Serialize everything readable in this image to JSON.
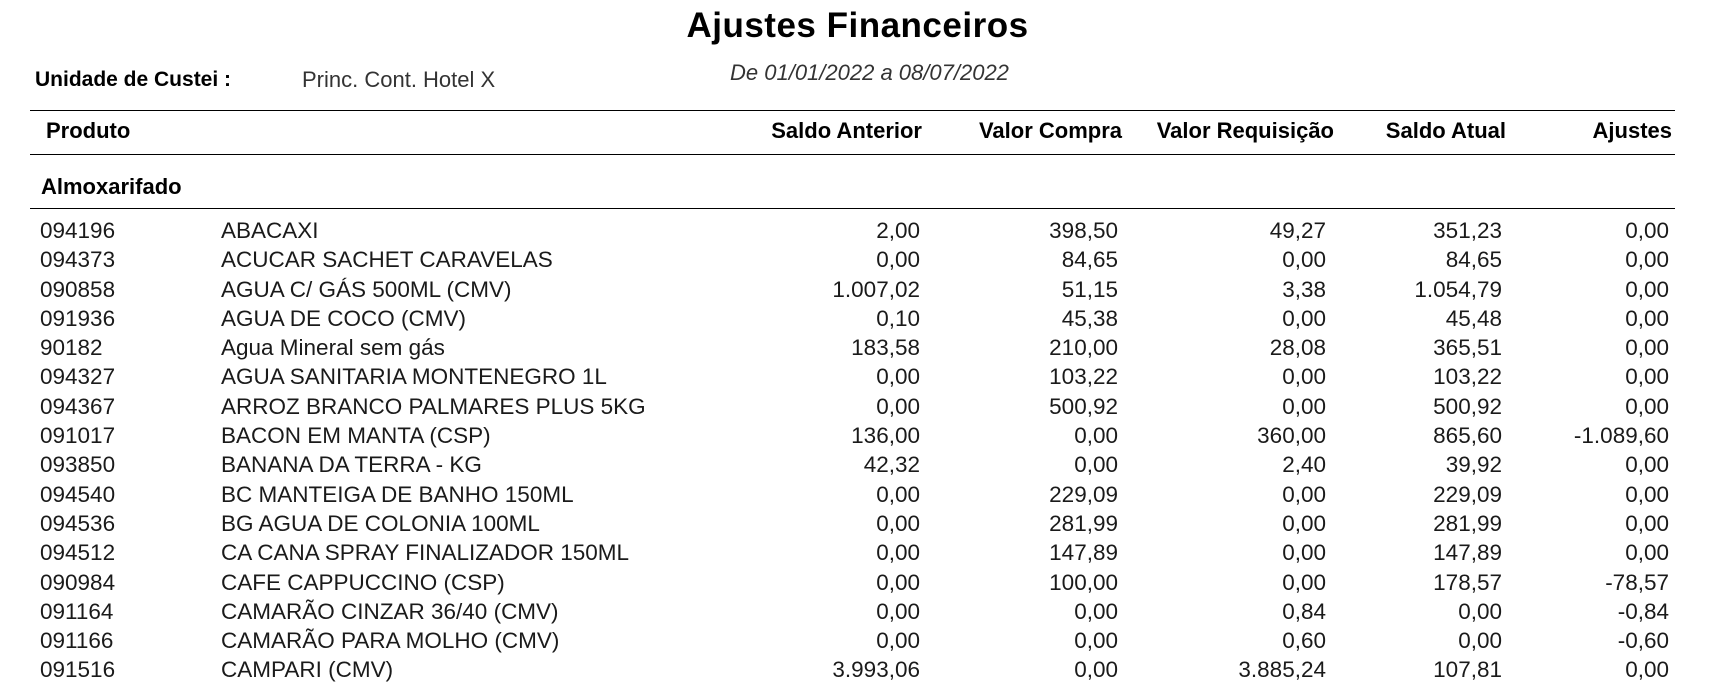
{
  "report": {
    "title": "Ajustes Financeiros",
    "unit_label": "Unidade de Custei :",
    "unit_value": "Princ. Cont. Hotel X",
    "period": "De 01/01/2022 a 08/07/2022"
  },
  "columns": {
    "produto": "Produto",
    "saldo_anterior": "Saldo Anterior",
    "valor_compra": "Valor Compra",
    "valor_requisicao": "Valor Requisição",
    "saldo_atual": "Saldo Atual",
    "ajustes": "Ajustes"
  },
  "group": {
    "label": "Almoxarifado"
  },
  "rows": [
    {
      "code": "094196",
      "name": "ABACAXI",
      "saldo_anterior": "2,00",
      "valor_compra": "398,50",
      "valor_requisicao": "49,27",
      "saldo_atual": "351,23",
      "ajustes": "0,00"
    },
    {
      "code": "094373",
      "name": "ACUCAR SACHET CARAVELAS",
      "saldo_anterior": "0,00",
      "valor_compra": "84,65",
      "valor_requisicao": "0,00",
      "saldo_atual": "84,65",
      "ajustes": "0,00"
    },
    {
      "code": "090858",
      "name": "AGUA C/ GÁS 500ML (CMV)",
      "saldo_anterior": "1.007,02",
      "valor_compra": "51,15",
      "valor_requisicao": "3,38",
      "saldo_atual": "1.054,79",
      "ajustes": "0,00"
    },
    {
      "code": "091936",
      "name": "AGUA DE COCO (CMV)",
      "saldo_anterior": "0,10",
      "valor_compra": "45,38",
      "valor_requisicao": "0,00",
      "saldo_atual": "45,48",
      "ajustes": "0,00"
    },
    {
      "code": "90182",
      "name": "Agua Mineral sem gás",
      "saldo_anterior": "183,58",
      "valor_compra": "210,00",
      "valor_requisicao": "28,08",
      "saldo_atual": "365,51",
      "ajustes": "0,00"
    },
    {
      "code": "094327",
      "name": "AGUA SANITARIA MONTENEGRO 1L",
      "saldo_anterior": "0,00",
      "valor_compra": "103,22",
      "valor_requisicao": "0,00",
      "saldo_atual": "103,22",
      "ajustes": "0,00"
    },
    {
      "code": "094367",
      "name": "ARROZ BRANCO PALMARES PLUS 5KG",
      "saldo_anterior": "0,00",
      "valor_compra": "500,92",
      "valor_requisicao": "0,00",
      "saldo_atual": "500,92",
      "ajustes": "0,00"
    },
    {
      "code": "091017",
      "name": "BACON EM MANTA (CSP)",
      "saldo_anterior": "136,00",
      "valor_compra": "0,00",
      "valor_requisicao": "360,00",
      "saldo_atual": "865,60",
      "ajustes": "-1.089,60"
    },
    {
      "code": "093850",
      "name": "BANANA DA TERRA - KG",
      "saldo_anterior": "42,32",
      "valor_compra": "0,00",
      "valor_requisicao": "2,40",
      "saldo_atual": "39,92",
      "ajustes": "0,00"
    },
    {
      "code": "094540",
      "name": "BC MANTEIGA DE BANHO 150ML",
      "saldo_anterior": "0,00",
      "valor_compra": "229,09",
      "valor_requisicao": "0,00",
      "saldo_atual": "229,09",
      "ajustes": "0,00"
    },
    {
      "code": "094536",
      "name": "BG AGUA DE COLONIA 100ML",
      "saldo_anterior": "0,00",
      "valor_compra": "281,99",
      "valor_requisicao": "0,00",
      "saldo_atual": "281,99",
      "ajustes": "0,00"
    },
    {
      "code": "094512",
      "name": "CA CANA SPRAY FINALIZADOR 150ML",
      "saldo_anterior": "0,00",
      "valor_compra": "147,89",
      "valor_requisicao": "0,00",
      "saldo_atual": "147,89",
      "ajustes": "0,00"
    },
    {
      "code": "090984",
      "name": "CAFE CAPPUCCINO (CSP)",
      "saldo_anterior": "0,00",
      "valor_compra": "100,00",
      "valor_requisicao": "0,00",
      "saldo_atual": "178,57",
      "ajustes": "-78,57"
    },
    {
      "code": "091164",
      "name": "CAMARÃO CINZAR 36/40 (CMV)",
      "saldo_anterior": "0,00",
      "valor_compra": "0,00",
      "valor_requisicao": "0,84",
      "saldo_atual": "0,00",
      "ajustes": "-0,84"
    },
    {
      "code": "091166",
      "name": "CAMARÃO PARA MOLHO (CMV)",
      "saldo_anterior": "0,00",
      "valor_compra": "0,00",
      "valor_requisicao": "0,60",
      "saldo_atual": "0,00",
      "ajustes": "-0,60"
    },
    {
      "code": "091516",
      "name": "CAMPARI (CMV)",
      "saldo_anterior": "3.993,06",
      "valor_compra": "0,00",
      "valor_requisicao": "3.885,24",
      "saldo_atual": "107,81",
      "ajustes": "0,00"
    }
  ]
}
